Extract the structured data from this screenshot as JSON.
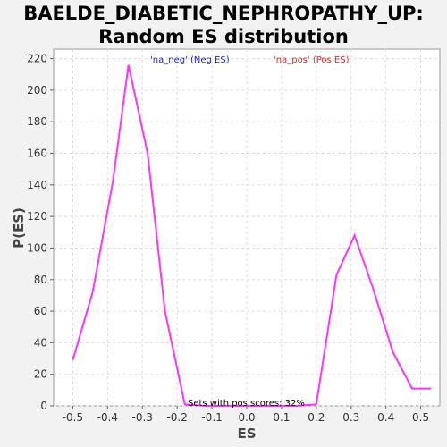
{
  "chart_data": {
    "type": "line",
    "title_line1": "BAELDE_DIABETIC_NEPHROPATHY_UP:",
    "title_line2": "Random ES distribution",
    "xlabel": "ES",
    "ylabel": "P(ES)",
    "xlim": [
      -0.555,
      0.555
    ],
    "ylim": [
      0,
      226
    ],
    "xticks": [
      -0.5,
      -0.4,
      -0.3,
      -0.2,
      -0.1,
      0.0,
      0.1,
      0.2,
      0.3,
      0.4,
      0.5
    ],
    "xtick_labels": [
      "-0.5",
      "-0.4",
      "-0.3",
      "-0.2",
      "-0.1",
      "0.0",
      "0.1",
      "0.2",
      "0.3",
      "0.4",
      "0.5"
    ],
    "yticks": [
      0,
      20,
      40,
      60,
      80,
      100,
      120,
      140,
      160,
      180,
      200,
      220
    ],
    "grid": true,
    "series": [
      {
        "color": "#ff33ff",
        "x": [
          -0.5,
          -0.443,
          -0.385,
          -0.34,
          -0.285,
          -0.235,
          -0.178,
          -0.12,
          -0.065,
          -0.01,
          0.045,
          0.105,
          0.145,
          0.2,
          0.258,
          0.31,
          0.362,
          0.42,
          0.475,
          0.53
        ],
        "y": [
          29,
          72,
          142,
          216,
          160,
          60,
          1,
          0,
          0,
          0,
          0,
          0,
          0,
          1,
          83,
          108,
          75,
          34,
          11,
          11
        ]
      }
    ],
    "legend": [
      {
        "label": "'na_neg' (Neg ES)",
        "color": "#2222dd"
      },
      {
        "label": "'na_pos' (Pos ES)",
        "color": "#ee2222"
      }
    ],
    "annotation": "Sets with pos scores: 32%"
  }
}
